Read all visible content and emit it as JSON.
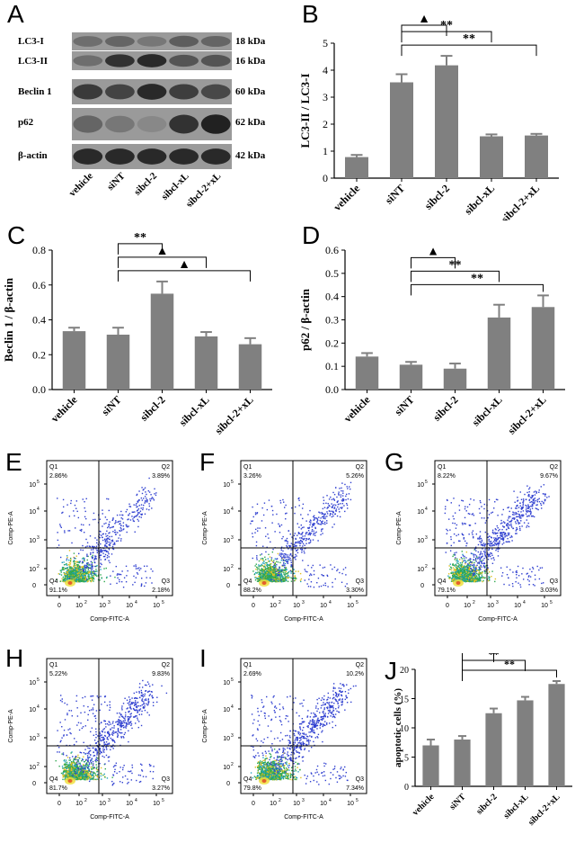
{
  "panel_labels": {
    "a": "A",
    "b": "B",
    "c": "C",
    "d": "D",
    "e": "E",
    "f": "F",
    "g": "G",
    "h": "H",
    "i": "I",
    "j": "J"
  },
  "western_blot": {
    "proteins": [
      "LC3-I",
      "LC3-II",
      "Beclin 1",
      "p62",
      "β-actin"
    ],
    "sizes": [
      "18 kDa",
      "16 kDa",
      "60 kDa",
      "62 kDa",
      "42 kDa"
    ],
    "lanes": [
      "vehicle",
      "siNT",
      "sibcl-2",
      "sibcl-xL",
      "sibcl-2+xL"
    ],
    "band_intensity": [
      [
        0.5,
        0.55,
        0.45,
        0.6,
        0.55
      ],
      [
        0.5,
        0.85,
        0.9,
        0.65,
        0.65
      ],
      [
        0.8,
        0.75,
        0.9,
        0.78,
        0.72
      ],
      [
        0.55,
        0.45,
        0.35,
        0.85,
        0.95
      ],
      [
        0.9,
        0.9,
        0.9,
        0.9,
        0.9
      ]
    ]
  },
  "chart_data": [
    {
      "id": "B",
      "type": "bar",
      "categories": [
        "vehicle",
        "siNT",
        "sibcl-2",
        "sibcl-xL",
        "sibcl-2+xL"
      ],
      "values": [
        0.78,
        3.55,
        4.18,
        1.55,
        1.58
      ],
      "errors": [
        0.08,
        0.3,
        0.35,
        0.07,
        0.06
      ],
      "ylabel": "LC3-II / LC3-I",
      "ylim": [
        0,
        5
      ],
      "yticks": [
        "0",
        "1",
        "2",
        "3",
        "4",
        "5"
      ],
      "brackets": [
        {
          "from": 1,
          "to": 2,
          "label": "▲"
        },
        {
          "from": 1,
          "to": 3,
          "label": "**"
        },
        {
          "from": 1,
          "to": 4,
          "label": "**"
        }
      ]
    },
    {
      "id": "C",
      "type": "bar",
      "categories": [
        "vehicle",
        "siNT",
        "sibcl-2",
        "sibcl-xL",
        "sibcl-2+xL"
      ],
      "values": [
        0.335,
        0.315,
        0.55,
        0.305,
        0.26
      ],
      "errors": [
        0.02,
        0.04,
        0.07,
        0.025,
        0.035
      ],
      "ylabel": "Beclin 1 / β-actin",
      "ylim": [
        0,
        0.8
      ],
      "yticks": [
        "0.0",
        "0.2",
        "0.4",
        "0.6",
        "0.8"
      ],
      "brackets": [
        {
          "from": 1,
          "to": 2,
          "label": "**"
        },
        {
          "from": 1,
          "to": 3,
          "label": "▲"
        },
        {
          "from": 1,
          "to": 4,
          "label": "▲"
        }
      ]
    },
    {
      "id": "D",
      "type": "bar",
      "categories": [
        "vehicle",
        "siNT",
        "sibcl-2",
        "sibcl-xL",
        "sibcl-2+xL"
      ],
      "values": [
        0.142,
        0.107,
        0.09,
        0.31,
        0.355
      ],
      "errors": [
        0.015,
        0.012,
        0.022,
        0.055,
        0.05
      ],
      "ylabel": "p62 / β-actin",
      "ylim": [
        0,
        0.6
      ],
      "yticks": [
        "0.0",
        "0.1",
        "0.2",
        "0.3",
        "0.4",
        "0.5",
        "0.6"
      ],
      "brackets": [
        {
          "from": 1,
          "to": 2,
          "label": "▲"
        },
        {
          "from": 1,
          "to": 3,
          "label": "**"
        },
        {
          "from": 1,
          "to": 4,
          "label": "**"
        }
      ]
    },
    {
      "id": "J",
      "type": "bar",
      "categories": [
        "vehicle",
        "siNT",
        "sibcl-2",
        "sibcl-xL",
        "sibcl-2+xL"
      ],
      "values": [
        7.0,
        8.0,
        12.5,
        14.7,
        17.5
      ],
      "errors": [
        1.0,
        0.6,
        0.8,
        0.6,
        0.5
      ],
      "ylabel": "apoptotic cells (%)",
      "ylim": [
        0,
        20
      ],
      "yticks": [
        "0",
        "5",
        "10",
        "15",
        "20"
      ],
      "brackets": [
        {
          "from": 1,
          "to": 2,
          "label": "**"
        },
        {
          "from": 1,
          "to": 3,
          "label": "**"
        },
        {
          "from": 1,
          "to": 4,
          "label": "**"
        }
      ]
    }
  ],
  "flow_panels": [
    {
      "id": "E",
      "q1": "Q1",
      "q1v": "2.86%",
      "q2": "Q2",
      "q2v": "3.89%",
      "q3": "Q3",
      "q3v": "2.18%",
      "q4": "Q4",
      "q4v": "91.1%",
      "density": 0.2
    },
    {
      "id": "F",
      "q1": "Q1",
      "q1v": "3.26%",
      "q2": "Q2",
      "q2v": "5.26%",
      "q3": "Q3",
      "q3v": "3.30%",
      "q4": "Q4",
      "q4v": "88.2%",
      "density": 0.3
    },
    {
      "id": "G",
      "q1": "Q1",
      "q1v": "8.22%",
      "q2": "Q2",
      "q2v": "9.67%",
      "q3": "Q3",
      "q3v": "3.03%",
      "q4": "Q4",
      "q4v": "79.1%",
      "density": 0.6
    },
    {
      "id": "H",
      "q1": "Q1",
      "q1v": "5.22%",
      "q2": "Q2",
      "q2v": "9.83%",
      "q3": "Q3",
      "q3v": "3.27%",
      "q4": "Q4",
      "q4v": "81.7%",
      "density": 0.55
    },
    {
      "id": "I",
      "q1": "Q1",
      "q1v": "2.69%",
      "q2": "Q2",
      "q2v": "10.2%",
      "q3": "Q3",
      "q3v": "7.34%",
      "q4": "Q4",
      "q4v": "79.8%",
      "density": 0.6
    }
  ],
  "flow_axes": {
    "xlabel": "Comp-FITC-A",
    "ylabel": "Comp-PE-A",
    "xticks": [
      "0",
      "10",
      "10",
      "10",
      "10"
    ],
    "xexp": [
      "",
      "2",
      "3",
      "4",
      "5"
    ],
    "yticks": [
      "0",
      "10",
      "10",
      "10",
      "10"
    ],
    "yexp": [
      "",
      "2",
      "3",
      "4",
      "5"
    ]
  },
  "colors": {
    "bar": "#808080",
    "axis": "#000000",
    "quad": "#000000",
    "dot": "#3040d0"
  }
}
